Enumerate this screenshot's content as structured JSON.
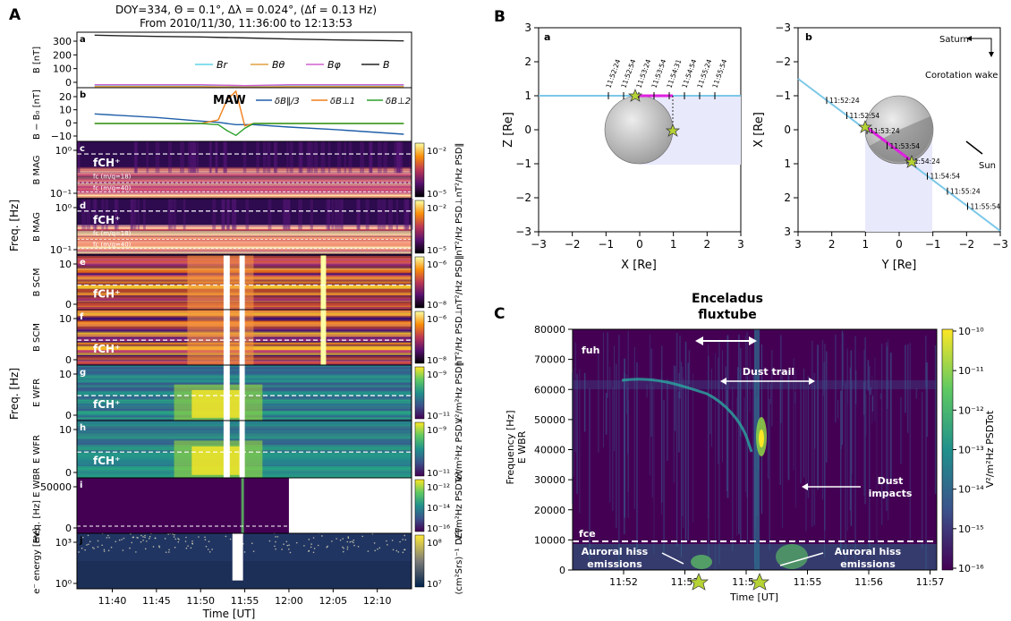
{
  "panel_letters": {
    "A": "A",
    "B": "B",
    "C": "C"
  },
  "panelA": {
    "header_line1": "DOY=334, Θ = 0.1°, Δλ = 0.024°, (Δf = 0.13 Hz)",
    "header_line2": "From 2010/11/30, 11:36:00 to 12:13:53",
    "xlabel": "Time [UT]",
    "time_ticks": [
      "11:40",
      "11:45",
      "11:50",
      "11:55",
      "12:00",
      "12:05",
      "12:10"
    ],
    "freq_axis_label": "Freq. [Hz]",
    "rows": [
      {
        "letter": "a",
        "ylabel": "B [nT]",
        "yticks": [
          "300",
          "200",
          "100",
          "0"
        ]
      },
      {
        "letter": "b",
        "ylabel": "B − B₀ [nT]",
        "yticks": [
          "20",
          "10",
          "0",
          "−10"
        ],
        "annotation": "MAW"
      },
      {
        "letter": "c",
        "ylabel": "B MAG",
        "yticks": [
          "10⁰",
          "10⁻¹"
        ],
        "cbar_label": "nT²/Hz PSD‖",
        "cbar_ticks": [
          "10⁻²",
          "10⁻⁵"
        ],
        "overlay": "fCH⁺",
        "fc1": "fc (m/q=18)",
        "fc2": "fc (m/q=40)"
      },
      {
        "letter": "d",
        "ylabel": "B MAG",
        "yticks": [
          "10⁰",
          "10⁻¹"
        ],
        "cbar_label": "nT²/Hz PSD⊥",
        "cbar_ticks": [
          "10⁻²",
          "10⁻⁵"
        ],
        "overlay": "fCH⁺",
        "fc1": "fc (m/q=18)",
        "fc2": "fc (m/q=40)"
      },
      {
        "letter": "e",
        "ylabel": "B SCM",
        "yticks": [
          "10",
          "0"
        ],
        "cbar_label": "nT²/Hz PSD‖",
        "cbar_ticks": [
          "10⁻⁶",
          "10⁻⁸"
        ],
        "overlay": "fCH⁺"
      },
      {
        "letter": "f",
        "ylabel": "B SCM",
        "yticks": [
          "10",
          "0"
        ],
        "cbar_label": "nT²/Hz PSD⊥",
        "cbar_ticks": [
          "10⁻⁶",
          "10⁻⁸"
        ],
        "overlay": "fCH⁺"
      },
      {
        "letter": "g",
        "ylabel": "E WFR",
        "yticks": [
          "10",
          "0"
        ],
        "cbar_label": "V²/m²Hz PSD‖",
        "cbar_ticks": [
          "10⁻⁹",
          "10⁻¹¹"
        ],
        "overlay": "fCH⁺"
      },
      {
        "letter": "h",
        "ylabel": "E WFR",
        "yticks": [
          "10",
          "0"
        ],
        "cbar_label": "V²/m²Hz PSD⊥",
        "cbar_ticks": [
          "10⁻⁹",
          "10⁻¹¹"
        ],
        "overlay": "fCH⁺"
      },
      {
        "letter": "i",
        "ylabel": "Freq. [Hz] E WBR",
        "yticks": [
          "50000",
          "0"
        ],
        "cbar_label": "V²/m²Hz PSDTot",
        "cbar_ticks": [
          "10⁻¹²",
          "10⁻¹⁴",
          "10⁻¹⁶"
        ]
      },
      {
        "letter": "j",
        "ylabel": "e⁻ energy [eV]",
        "yticks": [
          "10³",
          "10⁰"
        ],
        "cbar_label": "(cm²Srs)⁻¹ DEF",
        "cbar_ticks": [
          "10⁸",
          "10⁷"
        ]
      }
    ],
    "legend_a": [
      "Br",
      "Bθ",
      "Bφ",
      "B"
    ],
    "legend_b": [
      "δB‖/3",
      "δB⊥1",
      "δB⊥2"
    ],
    "colors": {
      "Br": "#5fd3e6",
      "Btheta": "#e0a040",
      "Bphi": "#d060d0",
      "B": "#222222",
      "dBpar": "#1f5fa8",
      "dBperp1": "#f07f1a",
      "dBperp2": "#2ca02c"
    }
  },
  "panelB": {
    "a": {
      "letter": "a",
      "xlabel": "X [Re]",
      "ylabel": "Z [Re]",
      "xticks": [
        "−3",
        "−2",
        "−1",
        "0",
        "1",
        "2",
        "3"
      ],
      "yticks": [
        "3",
        "2",
        "1",
        "0",
        "−1",
        "−2",
        "−3"
      ],
      "times": [
        "11:52:24",
        "11:52:54",
        "11:53:24",
        "11:53:54",
        "11:54:31",
        "11:54:54",
        "11:55:24",
        "11:55:54"
      ]
    },
    "b": {
      "letter": "b",
      "xlabel": "Y [Re]",
      "ylabel": "X [Re]",
      "xticks": [
        "3",
        "2",
        "1",
        "0",
        "−1",
        "−2",
        "−3"
      ],
      "yticks": [
        "−3",
        "−2",
        "−1",
        "0",
        "1",
        "2",
        "3"
      ],
      "times": [
        "11:52:24",
        "11:52:54",
        "11:53:24",
        "11:53:54",
        "11:54:24",
        "11:54:54",
        "11:55:24",
        "11:55:54"
      ],
      "saturn": "Saturn",
      "wake": "Corotation wake",
      "sun": "Sun"
    }
  },
  "panelC": {
    "title_line1": "Enceladus",
    "title_line2": "fluxtube",
    "xlabel": "Time [UT]",
    "ylabel_line1": "Frequency [Hz]",
    "ylabel_line2": "E WBR",
    "cbar_label": "V²/m²Hz PSDTot",
    "cbar_ticks": [
      "10⁻¹⁰",
      "10⁻¹¹",
      "10⁻¹²",
      "10⁻¹³",
      "10⁻¹⁴",
      "10⁻¹⁵",
      "10⁻¹⁶"
    ],
    "fuh": "fuh",
    "fce": "fce",
    "dust_trail": "Dust trail",
    "dust_impacts_1": "Dust",
    "dust_impacts_2": "impacts",
    "hiss_left_1": "Auroral hiss",
    "hiss_left_2": "emissions",
    "hiss_right_1": "Auroral hiss",
    "hiss_right_2": "emissions"
  },
  "chart_data": [
    {
      "type": "line",
      "title": "",
      "xlabel": "Time [UT]",
      "ylabel": "B [nT]",
      "x": [
        "11:38",
        "11:45",
        "11:50",
        "11:55",
        "12:00",
        "12:05",
        "12:13"
      ],
      "series": [
        {
          "name": "B",
          "values": [
            330,
            322,
            318,
            312,
            305,
            299,
            292
          ]
        },
        {
          "name": "Br",
          "values": [
            -3,
            -3,
            -3,
            -8,
            -3,
            -3,
            -3
          ]
        },
        {
          "name": "Bθ",
          "values": [
            -12,
            -12,
            -12,
            -16,
            -12,
            -12,
            -12
          ]
        },
        {
          "name": "Bφ",
          "values": [
            0,
            0,
            0,
            -6,
            0,
            0,
            0
          ]
        }
      ],
      "ylim": [
        -20,
        350
      ]
    },
    {
      "type": "line",
      "title": "",
      "xlabel": "Time [UT]",
      "ylabel": "B − B₀ [nT]",
      "x": [
        "11:38",
        "11:45",
        "11:50",
        "11:52",
        "11:53",
        "11:54",
        "11:55",
        "11:56",
        "12:00",
        "12:05",
        "12:13"
      ],
      "series": [
        {
          "name": "δB‖/3",
          "values": [
            8,
            5,
            2,
            1,
            0,
            -1,
            -1,
            -1,
            -3,
            -5,
            -9
          ]
        },
        {
          "name": "δB⊥1",
          "values": [
            0,
            0,
            0,
            3,
            20,
            27,
            -2,
            0,
            0,
            0,
            0
          ]
        },
        {
          "name": "δB⊥2",
          "values": [
            0,
            0,
            0,
            -1,
            -6,
            -10,
            -4,
            0,
            0,
            0,
            0
          ]
        }
      ],
      "ylim": [
        -15,
        30
      ],
      "annotations": [
        "MAW"
      ]
    },
    {
      "type": "heatmap",
      "title": "",
      "xlabel": "Time [UT]",
      "ylabel": "Frequency [Hz] E WBR",
      "xticks": [
        "11:52",
        "11:53",
        "11:54",
        "11:55",
        "11:56",
        "11:57"
      ],
      "ylim": [
        0,
        80000
      ],
      "yticks": [
        0,
        10000,
        20000,
        30000,
        40000,
        50000,
        60000,
        70000,
        80000
      ],
      "colorbar": "V²/m²Hz PSDTot",
      "colorbar_range": [
        "10⁻¹⁶",
        "10⁻¹⁰"
      ],
      "annotations": [
        "fuh",
        "fce",
        "Dust trail",
        "Dust impacts",
        "Auroral hiss emissions",
        "Enceladus fluxtube"
      ]
    }
  ]
}
